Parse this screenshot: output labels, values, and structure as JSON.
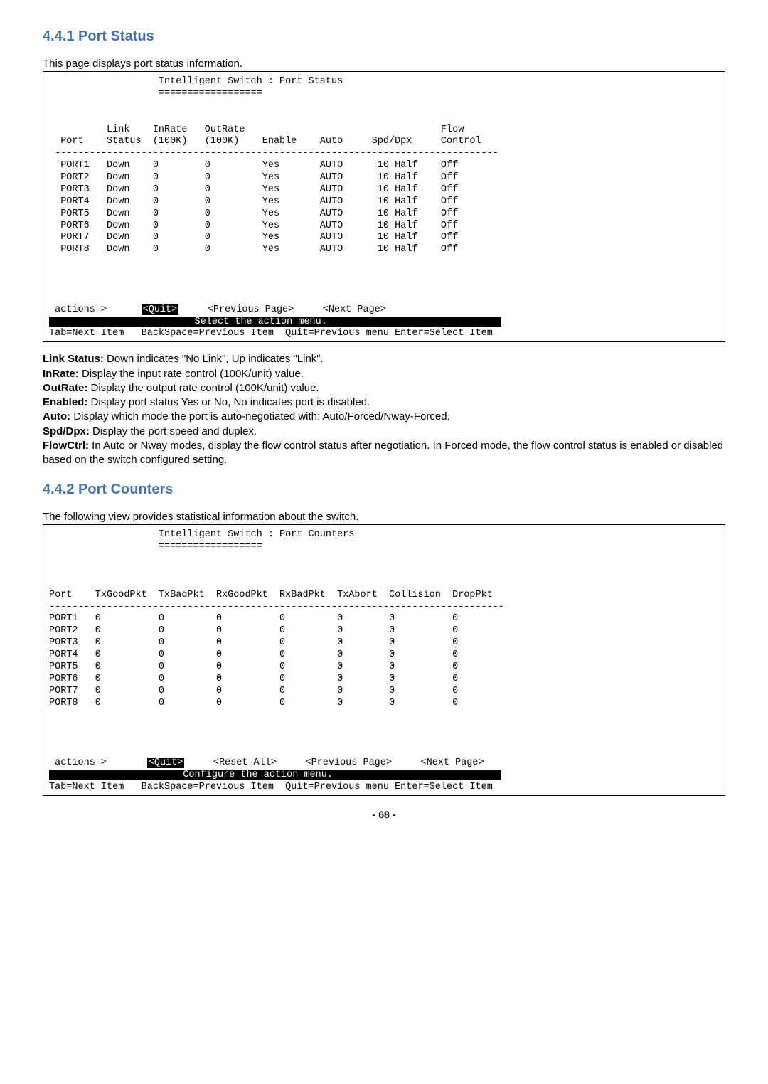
{
  "section1": {
    "heading": "4.4.1 Port Status",
    "intro": "This page displays port status information.",
    "terminal": {
      "title_line": "                   Intelligent Switch : Port Status",
      "title_rule": "                   ==================",
      "header1": "          Link    InRate   OutRate                                  Flow",
      "header2": "  Port    Status  (100K)   (100K)    Enable    Auto     Spd/Dpx     Control",
      "hline": " -----------------------------------------------------------------------------",
      "rows": [
        "  PORT1   Down    0        0         Yes       AUTO      10 Half    Off",
        "  PORT2   Down    0        0         Yes       AUTO      10 Half    Off",
        "  PORT3   Down    0        0         Yes       AUTO      10 Half    Off",
        "  PORT4   Down    0        0         Yes       AUTO      10 Half    Off",
        "  PORT5   Down    0        0         Yes       AUTO      10 Half    Off",
        "  PORT6   Down    0        0         Yes       AUTO      10 Half    Off",
        "  PORT7   Down    0        0         Yes       AUTO      10 Half    Off",
        "  PORT8   Down    0        0         Yes       AUTO      10 Half    Off"
      ],
      "actions_prefix": " actions->      ",
      "quit": "<Quit>",
      "actions_suffix": "     <Previous Page>     <Next Page>",
      "bar": "                         Select the action menu.                              ",
      "footer": "Tab=Next Item   BackSpace=Previous Item  Quit=Previous menu Enter=Select Item"
    },
    "desc_items": [
      {
        "b": "Link Status:",
        "t": " Down indicates \"No Link\", Up indicates \"Link\"."
      },
      {
        "b": "InRate:",
        "t": " Display the input rate control (100K/unit) value."
      },
      {
        "b": "OutRate:",
        "t": " Display the output rate control (100K/unit) value."
      },
      {
        "b": "Enabled:",
        "t": " Display port status Yes or No, No indicates port is disabled."
      },
      {
        "b": "Auto:",
        "t": " Display which mode the port is auto-negotiated with: Auto/Forced/Nway-Forced."
      },
      {
        "b": "Spd/Dpx:",
        "t": " Display the port speed and duplex."
      },
      {
        "b": "FlowCtrl:",
        "t": " In Auto or Nway modes, display the flow control status after negotiation. In Forced mode, the flow control status is enabled or disabled based on the switch configured setting."
      }
    ]
  },
  "section2": {
    "heading": "4.4.2 Port Counters",
    "intro": "The following view provides statistical information about the switch.",
    "terminal": {
      "title_line": "                   Intelligent Switch : Port Counters",
      "title_rule": "                   ==================",
      "header": "Port    TxGoodPkt  TxBadPkt  RxGoodPkt  RxBadPkt  TxAbort  Collision  DropPkt",
      "hline": "-------------------------------------------------------------------------------",
      "rows": [
        "PORT1   0          0         0          0         0        0          0",
        "PORT2   0          0         0          0         0        0          0",
        "PORT3   0          0         0          0         0        0          0",
        "PORT4   0          0         0          0         0        0          0",
        "PORT5   0          0         0          0         0        0          0",
        "PORT6   0          0         0          0         0        0          0",
        "PORT7   0          0         0          0         0        0          0",
        "PORT8   0          0         0          0         0        0          0"
      ],
      "actions_prefix": " actions->       ",
      "quit": "<Quit>",
      "actions_suffix": "     <Reset All>     <Previous Page>     <Next Page>",
      "bar": "                       Configure the action menu.                             ",
      "footer": "Tab=Next Item   BackSpace=Previous Item  Quit=Previous menu Enter=Select Item"
    }
  },
  "page_number": "- 68 -"
}
